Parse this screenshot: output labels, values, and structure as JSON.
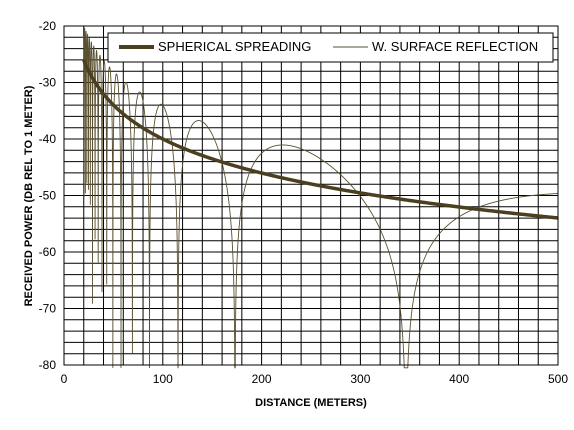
{
  "chart_data": {
    "type": "line",
    "xlabel": "DISTANCE (METERS)",
    "ylabel": "RECEIVED POWER (DB REL TO 1 METER)",
    "xlim": [
      0,
      500
    ],
    "ylim": [
      -80,
      -20
    ],
    "x_ticks": [
      0,
      100,
      200,
      300,
      400,
      500
    ],
    "y_ticks": [
      -80,
      -70,
      -60,
      -50,
      -40,
      -30,
      -20
    ],
    "grid": true,
    "legend_position": "top",
    "series": [
      {
        "name": "SPHERICAL SPREADING",
        "style": "thick",
        "color": "#4a4020",
        "x": [
          20,
          25,
          30,
          40,
          50,
          60,
          80,
          100,
          125,
          150,
          175,
          200,
          250,
          300,
          350,
          400,
          450,
          500
        ],
        "values": [
          -26.0,
          -28.0,
          -29.5,
          -32.0,
          -34.0,
          -35.6,
          -38.1,
          -40.0,
          -41.9,
          -43.5,
          -44.9,
          -46.0,
          -48.0,
          -49.5,
          -50.9,
          -52.0,
          -53.1,
          -54.0
        ]
      },
      {
        "name": "W. SURFACE REFLECTION",
        "style": "thin",
        "color": "#4a4020",
        "x": [],
        "values": []
      }
    ]
  },
  "colors": {
    "spreading": "#4a4020",
    "reflection": "#5a5030",
    "grid": "#000000"
  }
}
